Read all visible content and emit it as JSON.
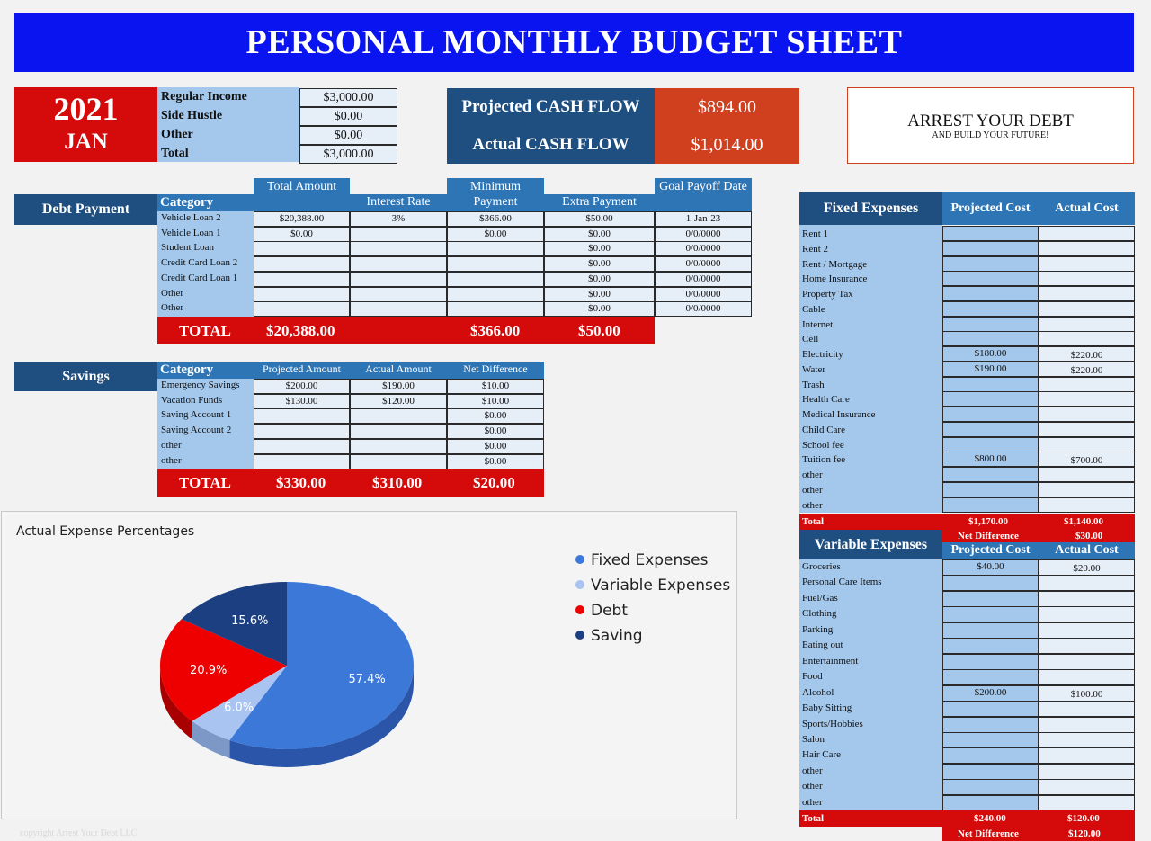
{
  "title": "PERSONAL MONTHLY BUDGET SHEET",
  "date": {
    "year": "2021",
    "month": "JAN"
  },
  "income": [
    {
      "label": "Regular Income",
      "value": "$3,000.00"
    },
    {
      "label": "Side Hustle",
      "value": "$0.00"
    },
    {
      "label": "Other",
      "value": "$0.00"
    },
    {
      "label": "Total",
      "value": "$3,000.00"
    }
  ],
  "cashflow": {
    "projected_label": "Projected CASH FLOW",
    "projected_value": "$894.00",
    "actual_label": "Actual CASH FLOW",
    "actual_value": "$1,014.00"
  },
  "motto": {
    "line1": "ARREST YOUR DEBT",
    "line2": "AND BUILD YOUR FUTURE!"
  },
  "debt": {
    "section": "Debt Payment",
    "headers": {
      "category": "Category",
      "total_amount": "Total Amount",
      "interest_rate": "Interest Rate",
      "min_payment": "Minimum Payment",
      "extra_payment": "Extra Payment",
      "goal_date": "Goal Payoff Date"
    },
    "rows": [
      {
        "category": "Vehicle Loan 2",
        "total": "$20,388.00",
        "rate": "3%",
        "min": "$366.00",
        "extra": "$50.00",
        "goal": "1-Jan-23"
      },
      {
        "category": "Vehicle Loan 1",
        "total": "$0.00",
        "rate": "",
        "min": "$0.00",
        "extra": "$0.00",
        "goal": "0/0/0000"
      },
      {
        "category": "Student Loan",
        "total": "",
        "rate": "",
        "min": "",
        "extra": "$0.00",
        "goal": "0/0/0000"
      },
      {
        "category": "Credit Card Loan 2",
        "total": "",
        "rate": "",
        "min": "",
        "extra": "$0.00",
        "goal": "0/0/0000"
      },
      {
        "category": "Credit Card Loan 1",
        "total": "",
        "rate": "",
        "min": "",
        "extra": "$0.00",
        "goal": "0/0/0000"
      },
      {
        "category": "Other",
        "total": "",
        "rate": "",
        "min": "",
        "extra": "$0.00",
        "goal": "0/0/0000"
      },
      {
        "category": "Other",
        "total": "",
        "rate": "",
        "min": "",
        "extra": "$0.00",
        "goal": "0/0/0000"
      }
    ],
    "total": {
      "label": "TOTAL",
      "total": "$20,388.00",
      "min": "$366.00",
      "extra": "$50.00"
    }
  },
  "savings": {
    "section": "Savings",
    "headers": {
      "category": "Category",
      "projected": "Projected Amount",
      "actual": "Actual Amount",
      "net": "Net Difference"
    },
    "rows": [
      {
        "category": "Emergency Savings",
        "projected": "$200.00",
        "actual": "$190.00",
        "net": "$10.00"
      },
      {
        "category": "Vacation Funds",
        "projected": "$130.00",
        "actual": "$120.00",
        "net": "$10.00"
      },
      {
        "category": "Saving Account 1",
        "projected": "",
        "actual": "",
        "net": "$0.00"
      },
      {
        "category": "Saving Account 2",
        "projected": "",
        "actual": "",
        "net": "$0.00"
      },
      {
        "category": "other",
        "projected": "",
        "actual": "",
        "net": "$0.00"
      },
      {
        "category": "other",
        "projected": "",
        "actual": "",
        "net": "$0.00"
      }
    ],
    "total": {
      "label": "TOTAL",
      "projected": "$330.00",
      "actual": "$310.00",
      "net": "$20.00"
    }
  },
  "fixed": {
    "section": "Fixed Expenses",
    "headers": {
      "projected": "Projected Cost",
      "actual": "Actual Cost"
    },
    "rows": [
      {
        "label": "Rent 1",
        "projected": "",
        "actual": ""
      },
      {
        "label": "Rent 2",
        "projected": "",
        "actual": ""
      },
      {
        "label": "Rent / Mortgage",
        "projected": "",
        "actual": ""
      },
      {
        "label": "Home Insurance",
        "projected": "",
        "actual": ""
      },
      {
        "label": "Property Tax",
        "projected": "",
        "actual": ""
      },
      {
        "label": "Cable",
        "projected": "",
        "actual": ""
      },
      {
        "label": "Internet",
        "projected": "",
        "actual": ""
      },
      {
        "label": "Cell",
        "projected": "",
        "actual": ""
      },
      {
        "label": "Electricity",
        "projected": "$180.00",
        "actual": "$220.00"
      },
      {
        "label": "Water",
        "projected": "$190.00",
        "actual": "$220.00"
      },
      {
        "label": "Trash",
        "projected": "",
        "actual": ""
      },
      {
        "label": "Health Care",
        "projected": "",
        "actual": ""
      },
      {
        "label": "Medical Insurance",
        "projected": "",
        "actual": ""
      },
      {
        "label": "Child Care",
        "projected": "",
        "actual": ""
      },
      {
        "label": "School fee",
        "projected": "",
        "actual": ""
      },
      {
        "label": "Tuition fee",
        "projected": "$800.00",
        "actual": "$700.00"
      },
      {
        "label": "other",
        "projected": "",
        "actual": ""
      },
      {
        "label": "other",
        "projected": "",
        "actual": ""
      },
      {
        "label": "other",
        "projected": "",
        "actual": ""
      }
    ],
    "total": {
      "label": "Total",
      "projected": "$1,170.00",
      "actual": "$1,140.00"
    },
    "net": {
      "label": "Net Difference",
      "value": "$30.00"
    }
  },
  "variable": {
    "section": "Variable Expenses",
    "headers": {
      "projected": "Projected Cost",
      "actual": "Actual Cost"
    },
    "rows": [
      {
        "label": "Groceries",
        "projected": "$40.00",
        "actual": "$20.00"
      },
      {
        "label": "Personal Care Items",
        "projected": "",
        "actual": ""
      },
      {
        "label": "Fuel/Gas",
        "projected": "",
        "actual": ""
      },
      {
        "label": "Clothing",
        "projected": "",
        "actual": ""
      },
      {
        "label": "Parking",
        "projected": "",
        "actual": ""
      },
      {
        "label": "Eating out",
        "projected": "",
        "actual": ""
      },
      {
        "label": "Entertainment",
        "projected": "",
        "actual": ""
      },
      {
        "label": "Food",
        "projected": "",
        "actual": ""
      },
      {
        "label": "Alcohol",
        "projected": "$200.00",
        "actual": "$100.00"
      },
      {
        "label": "Baby Sitting",
        "projected": "",
        "actual": ""
      },
      {
        "label": "Sports/Hobbies",
        "projected": "",
        "actual": ""
      },
      {
        "label": "Salon",
        "projected": "",
        "actual": ""
      },
      {
        "label": "Hair Care",
        "projected": "",
        "actual": ""
      },
      {
        "label": "other",
        "projected": "",
        "actual": ""
      },
      {
        "label": "other",
        "projected": "",
        "actual": ""
      },
      {
        "label": "other",
        "projected": "",
        "actual": ""
      }
    ],
    "total": {
      "label": "Total",
      "projected": "$240.00",
      "actual": "$120.00"
    },
    "net": {
      "label": "Net Difference",
      "value": "$120.00"
    }
  },
  "copyright": "copyright Arrest Your Debt LLC",
  "colors": {
    "banner": "#0a14f0",
    "red": "#d50b0b",
    "navy": "#1f4f80",
    "header_blue": "#2e75b6",
    "light_blue": "#a4c8ec",
    "orange": "#d0401f"
  },
  "chart_data": {
    "type": "pie",
    "title": "Actual Expense Percentages",
    "categories": [
      "Fixed Expenses",
      "Variable Expenses",
      "Debt",
      "Saving"
    ],
    "values": [
      57.4,
      6.0,
      20.9,
      15.6
    ],
    "value_labels": [
      "57.4%",
      "6.0%",
      "20.9%",
      "15.6%"
    ],
    "colors": [
      "#3c78d8",
      "#a9c4f0",
      "#ee0000",
      "#1c3f82"
    ],
    "legend": "right",
    "style": "3d"
  }
}
